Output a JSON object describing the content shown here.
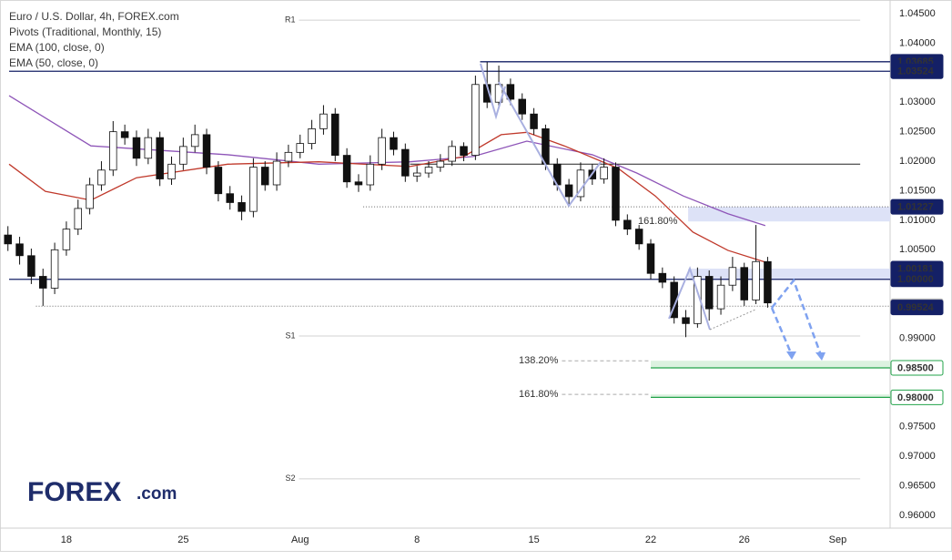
{
  "chart_data": {
    "type": "candlestick",
    "title": "Euro / U.S. Dollar, 4h, FOREX.com",
    "indicator": "Pivots (Traditional, Monthly, 15)",
    "x": [
      -2.5,
      -2,
      -1.5,
      -1,
      -0.5,
      0,
      0.5,
      1,
      1.5,
      2,
      2.5,
      3,
      3.5,
      4,
      4.5,
      5,
      5.5,
      6,
      6.5,
      7,
      7.5,
      8,
      8.5,
      9,
      9.5,
      10,
      10.5,
      11,
      11.5,
      12,
      12.5,
      13,
      13.5,
      14,
      14.5,
      15,
      15.5,
      16,
      16.5,
      17,
      17.5,
      18,
      18.5,
      19,
      19.5,
      20,
      20.5,
      21,
      21.5,
      22,
      22.5,
      23,
      23.5,
      24,
      24.5,
      25,
      25.5,
      26,
      26.5,
      27,
      27.5,
      28,
      28.5,
      29,
      29.5,
      30
    ],
    "open": [
      1.0075,
      1.006,
      1.004,
      1.0005,
      0.9985,
      1.005,
      1.0085,
      1.012,
      1.016,
      1.0185,
      1.025,
      1.024,
      1.0205,
      1.024,
      1.017,
      1.0195,
      1.0225,
      1.0245,
      1.019,
      1.0145,
      1.013,
      1.0115,
      1.019,
      1.016,
      1.02,
      1.0215,
      1.023,
      1.0255,
      1.028,
      1.021,
      1.0165,
      1.016,
      1.0195,
      1.024,
      1.022,
      1.0175,
      1.018,
      1.019,
      1.02,
      1.0225,
      1.021,
      1.033,
      1.03,
      1.033,
      1.0305,
      1.028,
      1.0255,
      1.0195,
      1.016,
      1.014,
      1.0185,
      1.017,
      1.019,
      1.01,
      1.0085,
      1.006,
      1.001,
      0.9995,
      0.9935,
      0.9925,
      1.0005,
      0.995,
      0.999,
      1.002,
      0.9965,
      1.003
    ],
    "high": [
      1.009,
      1.0072,
      1.0052,
      1.0018,
      1.0062,
      1.0098,
      1.0135,
      1.0172,
      1.02,
      1.0268,
      1.0262,
      1.0252,
      1.0255,
      1.025,
      1.0208,
      1.024,
      1.0262,
      1.0255,
      1.02,
      1.0158,
      1.0142,
      1.0205,
      1.02,
      1.0215,
      1.0228,
      1.0245,
      1.027,
      1.0295,
      1.029,
      1.0222,
      1.0178,
      1.021,
      1.0255,
      1.025,
      1.023,
      1.0192,
      1.02,
      1.0212,
      1.0235,
      1.0232,
      1.0345,
      1.0368,
      1.0362,
      1.034,
      1.0315,
      1.029,
      1.0262,
      1.0205,
      1.017,
      1.0198,
      1.0195,
      1.0205,
      1.0198,
      1.011,
      1.0092,
      1.0068,
      1.002,
      1.0005,
      0.9948,
      1.002,
      1.0015,
      1.0005,
      1.0038,
      1.0028,
      1.0092,
      1.0038
    ],
    "low": [
      1.0048,
      1.0025,
      0.9992,
      0.9955,
      0.9975,
      1.004,
      1.0075,
      1.011,
      1.015,
      1.0175,
      1.0228,
      1.0192,
      1.0195,
      1.0158,
      1.016,
      1.0185,
      1.0215,
      1.0178,
      1.0132,
      1.0118,
      1.01,
      1.0105,
      1.015,
      1.015,
      1.019,
      1.0205,
      1.022,
      1.0245,
      1.02,
      1.0155,
      1.0148,
      1.015,
      1.0185,
      1.021,
      1.0165,
      1.0165,
      1.0172,
      1.0182,
      1.0192,
      1.02,
      1.0202,
      1.029,
      1.0292,
      1.0295,
      1.027,
      1.0245,
      1.0185,
      1.015,
      1.0125,
      1.0132,
      1.016,
      1.0162,
      1.009,
      1.0075,
      1.005,
      1.0,
      0.9985,
      0.9925,
      0.9902,
      0.9918,
      0.993,
      0.994,
      0.998,
      0.9955,
      0.9958,
      0.9952
    ],
    "close": [
      1.006,
      1.004,
      1.0005,
      0.9985,
      1.005,
      1.0085,
      1.012,
      1.016,
      1.0185,
      1.025,
      1.024,
      1.0205,
      1.024,
      1.017,
      1.0195,
      1.0225,
      1.0245,
      1.019,
      1.0145,
      1.013,
      1.0115,
      1.019,
      1.016,
      1.02,
      1.0215,
      1.023,
      1.0255,
      1.028,
      1.021,
      1.0165,
      1.016,
      1.0195,
      1.024,
      1.022,
      1.0175,
      1.018,
      1.019,
      1.02,
      1.0225,
      1.021,
      1.033,
      1.03,
      1.033,
      1.0305,
      1.028,
      1.0255,
      1.0195,
      1.016,
      1.014,
      1.0185,
      1.017,
      1.019,
      1.01,
      1.0085,
      1.006,
      1.001,
      0.9995,
      0.9935,
      0.9925,
      1.0005,
      0.995,
      0.999,
      1.002,
      0.9965,
      1.003,
      0.996
    ],
    "up_color": "#ffffff",
    "down_color": "#111111",
    "outline_color": "#111111",
    "series": [
      {
        "name": "EMA (100, close, 0)",
        "color": "#8e55b8",
        "x": [
          -2.45,
          1.05,
          6.9,
          10.8,
          14.7,
          17.4,
          19.7,
          22.5,
          24.4,
          26.4,
          28.3,
          29.9
        ],
        "values": [
          1.0311,
          1.0226,
          1.0211,
          1.0195,
          1.0199,
          1.0208,
          1.0234,
          1.0211,
          1.018,
          1.0141,
          1.0111,
          1.0091
        ]
      },
      {
        "name": "EMA (50, close, 0)",
        "color": "#c0392b",
        "x": [
          -2.45,
          -0.9,
          1.05,
          3.0,
          6.9,
          10.8,
          14.7,
          17.0,
          18.6,
          19.7,
          21.3,
          23.6,
          25.2,
          26.8,
          28.3,
          29.9
        ],
        "values": [
          1.0195,
          1.0149,
          1.0134,
          1.0172,
          1.0195,
          1.0199,
          1.0191,
          1.0208,
          1.0245,
          1.0249,
          1.0226,
          1.0188,
          1.0141,
          1.008,
          1.0049,
          1.0029
        ]
      }
    ],
    "xlim": [
      -2.45,
      35.24
    ],
    "xticks": [
      {
        "value": 0,
        "label": "18"
      },
      {
        "value": 5,
        "label": "25"
      },
      {
        "value": 10,
        "label": "Aug"
      },
      {
        "value": 15,
        "label": "8"
      },
      {
        "value": 20,
        "label": "15"
      },
      {
        "value": 25,
        "label": "22"
      },
      {
        "value": 29,
        "label": "26"
      },
      {
        "value": 33,
        "label": "Sep"
      }
    ],
    "ylim": [
      0.95785,
      1.04731
    ],
    "yticks": [
      {
        "value": 1.045,
        "label": "1.04500"
      },
      {
        "value": 1.04,
        "label": "1.04000"
      },
      {
        "value": 1.03,
        "label": "1.03000"
      },
      {
        "value": 1.025,
        "label": "1.02500"
      },
      {
        "value": 1.02,
        "label": "1.02000"
      },
      {
        "value": 1.015,
        "label": "1.01500"
      },
      {
        "value": 1.01,
        "label": "1.01000"
      },
      {
        "value": 1.005,
        "label": "1.00500"
      },
      {
        "value": 0.99,
        "label": "0.99000"
      },
      {
        "value": 0.975,
        "label": "0.97500"
      },
      {
        "value": 0.97,
        "label": "0.97000"
      },
      {
        "value": 0.965,
        "label": "0.96500"
      },
      {
        "value": 0.96,
        "label": "0.96000"
      }
    ],
    "pivots": [
      {
        "name": "R1",
        "value": 1.0439,
        "x0": 9.95,
        "x1": 33.96
      },
      {
        "name": "S1",
        "value": 0.9904,
        "x0": 9.95,
        "x1": 33.96
      },
      {
        "name": "S2",
        "value": 0.9662,
        "x0": 9.95,
        "x1": 33.96
      }
    ],
    "lines": [
      {
        "value": 1.0195,
        "x0": 14.7,
        "x1": 33.96,
        "color": "#222222"
      }
    ],
    "zones": [
      {
        "from": 1.01227,
        "to": 1.0098,
        "x0": 26.6,
        "color": "#dde2f7"
      },
      {
        "from": 1.00181,
        "to": 1.0,
        "x0": 26.6,
        "color": "#dde2f7"
      },
      {
        "from": 0.9862,
        "to": 0.985,
        "x0": 25.0,
        "color": "#dcf2e0"
      },
      {
        "from": 0.9805,
        "to": 0.98,
        "x0": 25.0,
        "color": "#dcf2e0"
      }
    ],
    "levels": [
      {
        "value": 1.03685,
        "label": "1.03685",
        "x0": 17.7,
        "style": "solid",
        "color": "#142066",
        "text_color": "#ffffff"
      },
      {
        "value": 1.03524,
        "label": "1.03524",
        "x0": -2.45,
        "style": "solid",
        "color": "#142066",
        "text_color": "#ffffff"
      },
      {
        "value": 1.01227,
        "label": "1.01227",
        "x0": 12.7,
        "style": "dotted",
        "color": "#142066",
        "text_color": "#ffffff"
      },
      {
        "value": 1.00181,
        "label": "1.00181",
        "x0": 26.6,
        "style": "none",
        "color": "#142066",
        "text_color": "#ffffff"
      },
      {
        "value": 1.0,
        "label": "1.00000",
        "x0": -2.45,
        "style": "solid",
        "color": "#142066",
        "text_color": "#ffffff"
      },
      {
        "value": 0.99544,
        "label": "0.99544",
        "x0": -1.3,
        "style": "dotted",
        "color": "#b8b8b8",
        "text_color": "#111111"
      },
      {
        "value": 0.99524,
        "label": "0.99524",
        "x0": 30.0,
        "style": "none",
        "color": "#142066",
        "text_color": "#ffffff"
      },
      {
        "value": 0.985,
        "label": "0.98500",
        "x0": 25.0,
        "style": "solid",
        "color": "#22a34a",
        "text_color": "#111111"
      },
      {
        "value": 0.98,
        "label": "0.98000",
        "x0": 25.0,
        "style": "solid",
        "color": "#22a34a",
        "text_color": "#111111"
      }
    ],
    "fibs": [
      {
        "label": "161.80%",
        "value": 1.0098,
        "x0": 26.3,
        "x1": 26.3
      },
      {
        "label": "138.20%",
        "value": 0.9862,
        "x0": 21.2,
        "x1": 25.0
      },
      {
        "label": "161.80%",
        "value": 0.9805,
        "x0": 21.2,
        "x1": 25.0
      }
    ],
    "logo": {
      "main": "FOREX",
      "suffix": ".com"
    }
  }
}
